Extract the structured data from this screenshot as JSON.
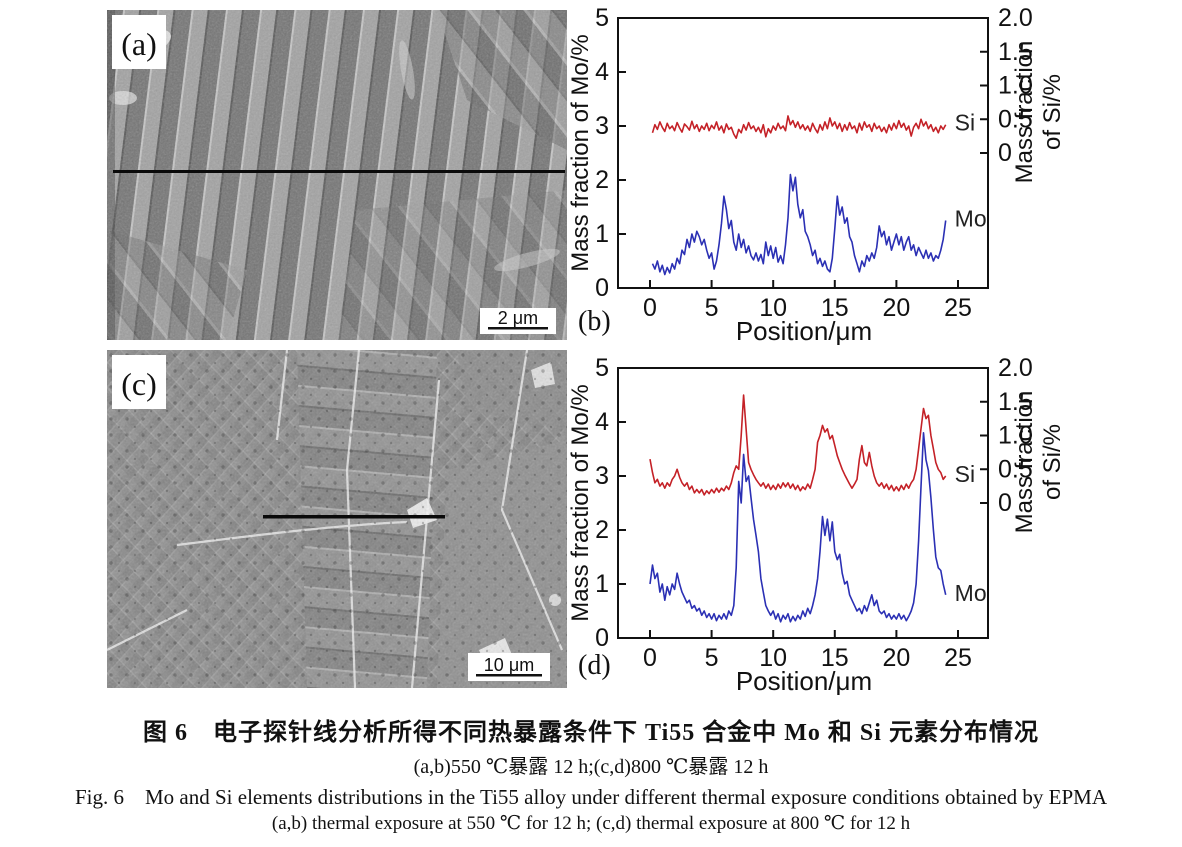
{
  "figure": {
    "panel_a": {
      "label": "(a)",
      "scale_bar": "2 μm"
    },
    "panel_c": {
      "label": "(c)",
      "scale_bar": "10 μm"
    },
    "panel_b_label": "(b)",
    "panel_d_label": "(d)"
  },
  "caption": {
    "zh_title": "图 6　电子探针线分析所得不同热暴露条件下 Ti55 合金中 Mo 和 Si 元素分布情况",
    "zh_sub": "(a,b)550 ℃暴露 12 h;(c,d)800 ℃暴露 12 h",
    "en_title": "Fig. 6　Mo and Si elements distributions in the Ti55 alloy under different thermal exposure conditions obtained by EPMA",
    "en_sub": "(a,b) thermal exposure at 550 ℃ for 12 h; (c,d) thermal exposure at 800 ℃ for 12 h"
  },
  "chart_data": [
    {
      "id": "b",
      "type": "line",
      "xlabel": "Position/μm",
      "ylabel_left": "Mass fraction of Mo/%",
      "ylabel_right_lines": [
        "Mass fraction",
        "of Si/%"
      ],
      "x_ticks": [
        0,
        5,
        10,
        15,
        20,
        25
      ],
      "left_ticks": [
        0,
        1,
        2,
        3,
        4,
        5
      ],
      "right_ticks": [
        "2.0",
        "1.5",
        "1.0",
        "0.5",
        "0"
      ],
      "xlim": [
        0,
        25
      ],
      "left_range": [
        0,
        5
      ],
      "right_range": [
        0,
        2
      ],
      "grid": false,
      "series": [
        {
          "name": "Si",
          "color": "#c42127",
          "axis": "right",
          "x_start": 0.2,
          "x_step": 0.2,
          "values": [
            0.3,
            0.42,
            0.35,
            0.46,
            0.38,
            0.32,
            0.44,
            0.36,
            0.4,
            0.33,
            0.45,
            0.37,
            0.31,
            0.43,
            0.39,
            0.34,
            0.47,
            0.36,
            0.42,
            0.32,
            0.4,
            0.35,
            0.44,
            0.33,
            0.41,
            0.36,
            0.46,
            0.34,
            0.4,
            0.3,
            0.43,
            0.35,
            0.38,
            0.28,
            0.22,
            0.35,
            0.3,
            0.42,
            0.34,
            0.45,
            0.36,
            0.4,
            0.32,
            0.38,
            0.3,
            0.42,
            0.24,
            0.36,
            0.3,
            0.4,
            0.34,
            0.44,
            0.36,
            0.4,
            0.33,
            0.55,
            0.42,
            0.48,
            0.38,
            0.46,
            0.36,
            0.42,
            0.34,
            0.4,
            0.32,
            0.44,
            0.36,
            0.3,
            0.42,
            0.34,
            0.46,
            0.36,
            0.52,
            0.4,
            0.46,
            0.36,
            0.44,
            0.32,
            0.42,
            0.34,
            0.45,
            0.36,
            0.4,
            0.3,
            0.44,
            0.34,
            0.46,
            0.38,
            0.42,
            0.32,
            0.44,
            0.36,
            0.4,
            0.32,
            0.38,
            0.3,
            0.42,
            0.34,
            0.44,
            0.36,
            0.48,
            0.38,
            0.44,
            0.34,
            0.4,
            0.25,
            0.38,
            0.44,
            0.36,
            0.5,
            0.4,
            0.46,
            0.36,
            0.42,
            0.32,
            0.38,
            0.3,
            0.4,
            0.35,
            0.42
          ]
        },
        {
          "name": "Mo",
          "color": "#2b30b4",
          "axis": "left",
          "x_start": 0.2,
          "x_step": 0.2,
          "values": [
            0.45,
            0.35,
            0.5,
            0.3,
            0.42,
            0.25,
            0.38,
            0.28,
            0.45,
            0.35,
            0.55,
            0.45,
            0.7,
            0.62,
            0.9,
            0.75,
            1.0,
            0.85,
            1.05,
            0.95,
            0.8,
            0.9,
            0.7,
            0.55,
            0.65,
            0.35,
            0.5,
            0.8,
            1.2,
            1.7,
            1.45,
            1.1,
            1.25,
            0.85,
            0.7,
            1.0,
            0.75,
            0.9,
            0.65,
            0.78,
            0.6,
            0.52,
            0.65,
            0.5,
            0.62,
            0.45,
            0.85,
            0.6,
            0.78,
            0.55,
            0.75,
            0.48,
            0.6,
            0.45,
            0.8,
            1.3,
            2.1,
            1.8,
            2.05,
            1.55,
            1.3,
            1.45,
            1.05,
            0.95,
            0.8,
            0.6,
            0.7,
            0.45,
            0.55,
            0.4,
            0.5,
            0.35,
            0.3,
            0.55,
            1.1,
            1.7,
            1.35,
            1.5,
            1.2,
            1.3,
            0.95,
            0.85,
            0.6,
            0.45,
            0.3,
            0.5,
            0.4,
            0.6,
            0.5,
            0.65,
            0.55,
            0.75,
            1.15,
            0.95,
            1.05,
            0.8,
            0.95,
            0.7,
            0.85,
            1.0,
            0.8,
            0.95,
            0.7,
            0.85,
            0.95,
            0.7,
            0.8,
            0.6,
            0.75,
            0.65,
            0.55,
            0.7,
            0.55,
            0.65,
            0.5,
            0.6,
            0.55,
            0.7,
            0.9,
            1.25
          ]
        }
      ]
    },
    {
      "id": "d",
      "type": "line",
      "xlabel": "Position/μm",
      "ylabel_left": "Mass fraction of Mo/%",
      "ylabel_right_lines": [
        "Mass fraction",
        "of Si/%"
      ],
      "x_ticks": [
        0,
        5,
        10,
        15,
        20,
        25
      ],
      "left_ticks": [
        0,
        1,
        2,
        3,
        4,
        5
      ],
      "right_ticks": [
        "2.0",
        "1.5",
        "1.0",
        "0.5",
        "0"
      ],
      "xlim": [
        0,
        25
      ],
      "left_range": [
        0,
        5
      ],
      "right_range": [
        0,
        2
      ],
      "grid": false,
      "series": [
        {
          "name": "Si",
          "color": "#c42127",
          "axis": "right",
          "x_start": 0.0,
          "x_step": 0.2,
          "values": [
            0.65,
            0.45,
            0.3,
            0.35,
            0.25,
            0.3,
            0.22,
            0.3,
            0.25,
            0.35,
            0.4,
            0.5,
            0.38,
            0.3,
            0.25,
            0.3,
            0.2,
            0.25,
            0.15,
            0.2,
            0.15,
            0.2,
            0.12,
            0.18,
            0.14,
            0.2,
            0.15,
            0.22,
            0.16,
            0.22,
            0.18,
            0.25,
            0.2,
            0.3,
            0.45,
            0.55,
            0.5,
            1.0,
            1.6,
            1.1,
            0.6,
            0.5,
            0.42,
            0.35,
            0.3,
            0.25,
            0.3,
            0.22,
            0.28,
            0.2,
            0.26,
            0.2,
            0.28,
            0.22,
            0.3,
            0.24,
            0.3,
            0.22,
            0.28,
            0.2,
            0.26,
            0.18,
            0.24,
            0.2,
            0.28,
            0.22,
            0.35,
            0.5,
            0.9,
            1.0,
            1.15,
            1.05,
            1.1,
            0.95,
            1.0,
            0.85,
            0.7,
            0.6,
            0.5,
            0.42,
            0.35,
            0.28,
            0.22,
            0.28,
            0.35,
            0.65,
            0.85,
            0.6,
            0.55,
            0.75,
            0.55,
            0.4,
            0.3,
            0.25,
            0.3,
            0.22,
            0.28,
            0.2,
            0.26,
            0.18,
            0.24,
            0.18,
            0.26,
            0.2,
            0.28,
            0.22,
            0.3,
            0.35,
            0.5,
            0.8,
            1.1,
            1.4,
            1.25,
            1.3,
            1.0,
            0.8,
            0.6,
            0.5,
            0.45,
            0.35,
            0.4
          ]
        },
        {
          "name": "Mo",
          "color": "#2b30b4",
          "axis": "left",
          "x_start": 0.0,
          "x_step": 0.2,
          "values": [
            1.0,
            1.35,
            1.1,
            1.2,
            0.85,
            1.0,
            0.7,
            0.95,
            0.8,
            1.0,
            0.9,
            1.2,
            1.0,
            0.85,
            0.75,
            0.65,
            0.7,
            0.55,
            0.6,
            0.5,
            0.55,
            0.42,
            0.5,
            0.38,
            0.45,
            0.35,
            0.45,
            0.32,
            0.42,
            0.35,
            0.45,
            0.35,
            0.5,
            0.42,
            0.6,
            1.3,
            2.9,
            2.5,
            3.4,
            2.9,
            3.0,
            2.6,
            2.2,
            1.9,
            1.6,
            1.1,
            0.85,
            0.6,
            0.5,
            0.42,
            0.5,
            0.35,
            0.45,
            0.3,
            0.42,
            0.35,
            0.45,
            0.3,
            0.4,
            0.32,
            0.42,
            0.35,
            0.5,
            0.4,
            0.55,
            0.45,
            0.6,
            0.8,
            1.1,
            1.6,
            2.25,
            1.9,
            2.2,
            1.8,
            2.15,
            1.6,
            1.45,
            1.55,
            1.2,
            1.0,
            1.05,
            0.8,
            0.7,
            0.6,
            0.5,
            0.55,
            0.45,
            0.6,
            0.5,
            0.65,
            0.8,
            0.6,
            0.7,
            0.5,
            0.45,
            0.5,
            0.38,
            0.45,
            0.35,
            0.42,
            0.35,
            0.45,
            0.35,
            0.42,
            0.32,
            0.4,
            0.5,
            0.65,
            1.0,
            1.8,
            2.8,
            3.8,
            3.3,
            3.1,
            2.6,
            2.0,
            1.5,
            1.3,
            1.25,
            1.0,
            0.8
          ]
        }
      ]
    }
  ]
}
